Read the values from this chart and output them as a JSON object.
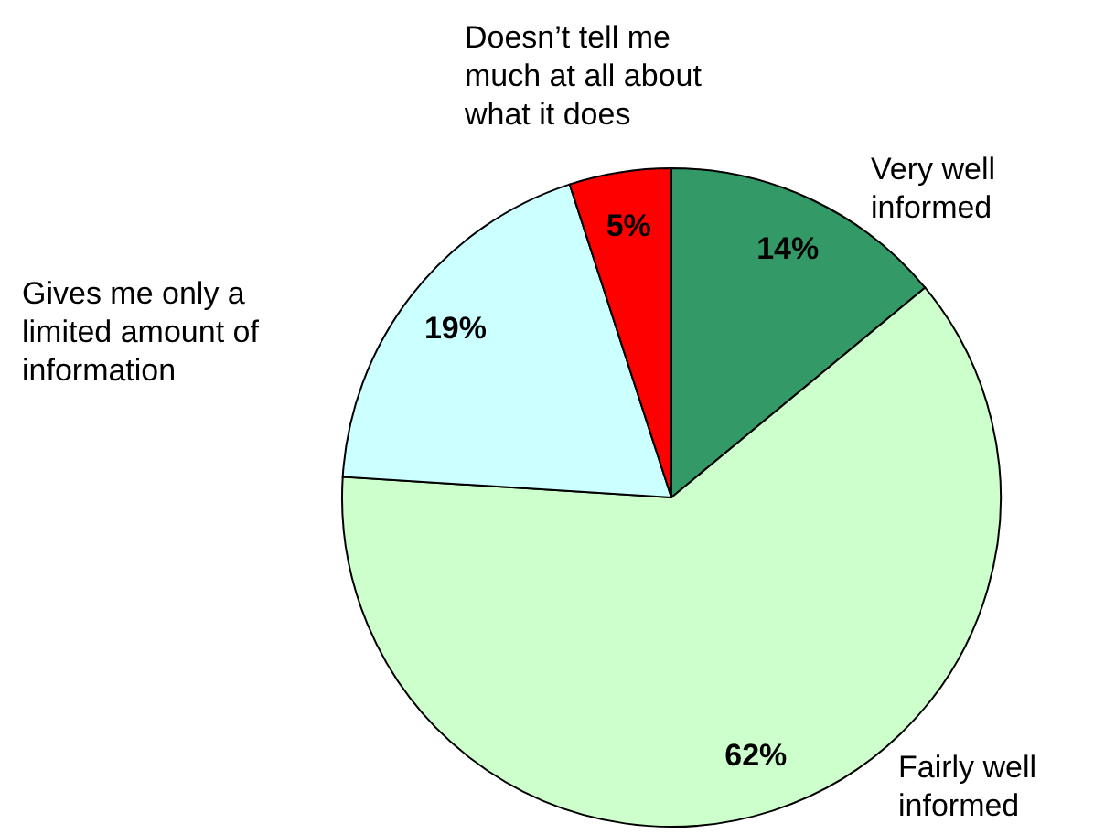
{
  "chart_data": {
    "type": "pie",
    "categories": [
      "Very well informed",
      "Fairly well informed",
      "Gives me only a limited amount of information",
      "Doesn’t tell me much at all about what it does"
    ],
    "values": [
      14,
      62,
      19,
      5
    ],
    "colors": [
      "#339966",
      "#ccffcc",
      "#ccffff",
      "#ff0000"
    ],
    "value_labels": [
      "14%",
      "62%",
      "19%",
      "5%"
    ]
  }
}
